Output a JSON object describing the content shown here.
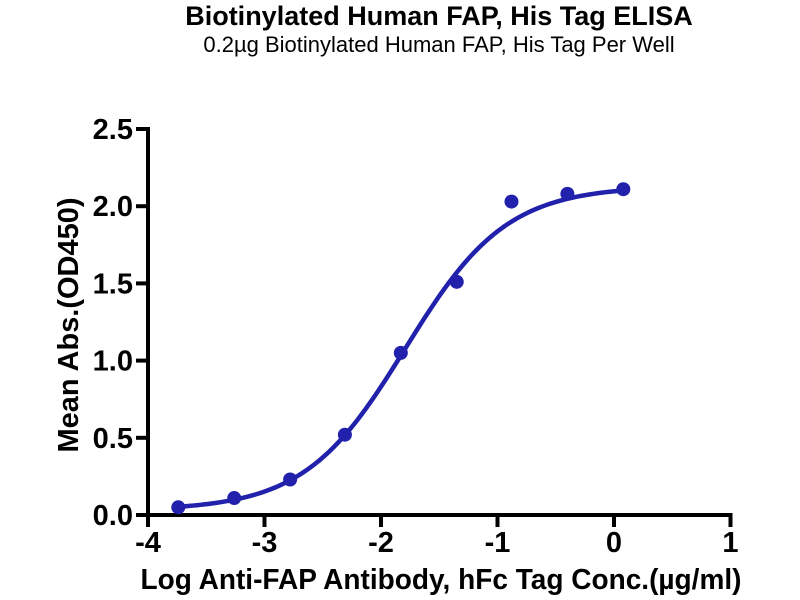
{
  "page": {
    "background": "#ffffff"
  },
  "chart_data": {
    "type": "scatter",
    "title": "Biotinylated Human FAP, His Tag ELISA",
    "subtitle": "0.2µg Biotinylated Human FAP, His Tag Per Well",
    "xlabel": "Log Anti-FAP Antibody, hFc Tag Conc.(µg/ml)",
    "ylabel": "Mean Abs.(OD450)",
    "x": [
      -3.74,
      -3.26,
      -2.78,
      -2.31,
      -1.83,
      -1.35,
      -0.88,
      -0.4,
      0.08
    ],
    "y": [
      0.05,
      0.11,
      0.23,
      0.52,
      1.05,
      1.51,
      2.03,
      2.08,
      2.11
    ],
    "x_ticks": [
      -4,
      -3,
      -2,
      -1,
      0,
      1
    ],
    "y_ticks": [
      0.0,
      0.5,
      1.0,
      1.5,
      2.0,
      2.5
    ],
    "xlim": [
      -4,
      1
    ],
    "ylim": [
      0,
      2.5
    ],
    "grid": false,
    "legend": "none",
    "marker_color": "#2121ab",
    "line_color": "#2121ab",
    "axis_color": "#000000",
    "fit": {
      "model": "4PL",
      "bottom": 0.03,
      "top": 2.13,
      "logEC50": -1.79,
      "hill": 1.0
    }
  }
}
